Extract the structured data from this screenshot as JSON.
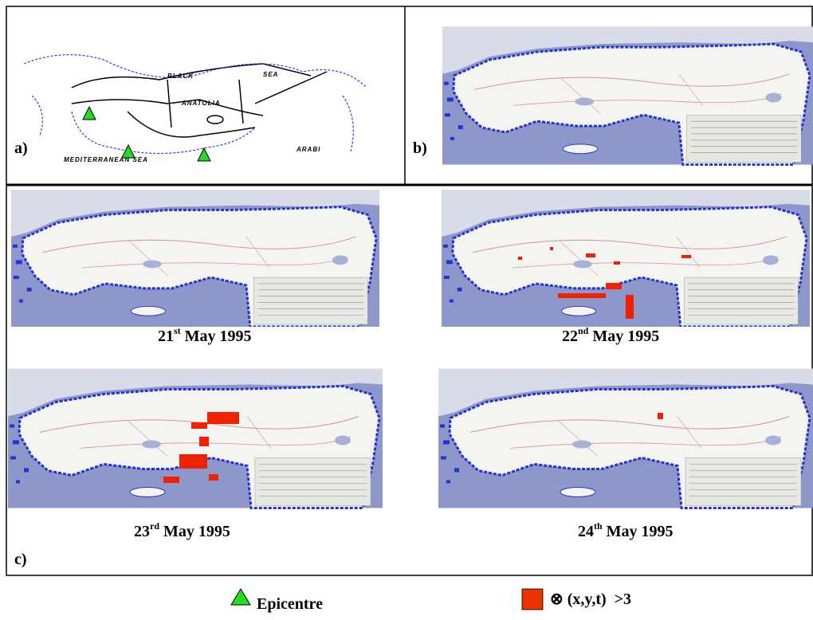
{
  "panels": {
    "a": {
      "label": "a)",
      "map_labels": [
        "BLACK",
        "SEA",
        "ANATOLIA",
        "ARABI",
        "MEDITERRANEAN SEA"
      ]
    },
    "b": {
      "label": "b)"
    },
    "c": {
      "label": "c)",
      "maps": [
        {
          "day": "21",
          "suffix": "st",
          "month_year": "May 1995"
        },
        {
          "day": "22",
          "suffix": "nd",
          "month_year": "May 1995"
        },
        {
          "day": "23",
          "suffix": "rd",
          "month_year": "May 1995"
        },
        {
          "day": "24",
          "suffix": "th",
          "month_year": "May 1995"
        }
      ]
    }
  },
  "legend": {
    "epicentre": "Epicentre",
    "threshold": "⊗ (x,y,t)  >3"
  }
}
